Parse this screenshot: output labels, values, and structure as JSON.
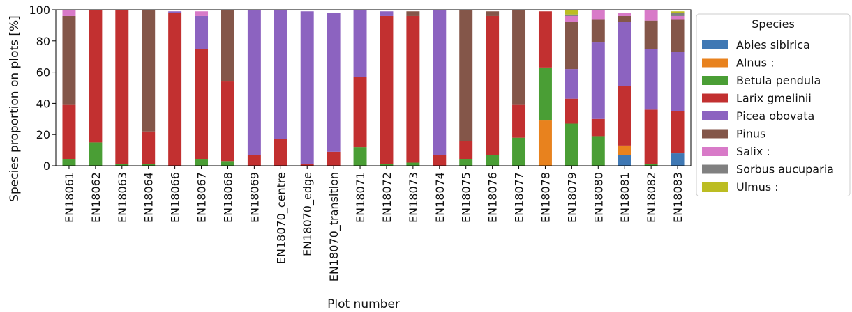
{
  "chart_data": {
    "type": "bar",
    "stacked": true,
    "xlabel": "Plot number",
    "ylabel": "Species proportion on plots [%]",
    "ylim": [
      0,
      100
    ],
    "yticks": [
      0,
      20,
      40,
      60,
      80,
      100
    ],
    "grid": false,
    "legend": {
      "title": "Species",
      "placement": "right, outside plot area"
    },
    "categories": [
      "EN18061",
      "EN18062",
      "EN18063",
      "EN18064",
      "EN18066",
      "EN18067",
      "EN18068",
      "EN18069",
      "EN18070_centre",
      "EN18070_edge",
      "EN18070_transition",
      "EN18071",
      "EN18072",
      "EN18073",
      "EN18074",
      "EN18075",
      "EN18076",
      "EN18077",
      "EN18078",
      "EN18079",
      "EN18080",
      "EN18081",
      "EN18082",
      "EN18083"
    ],
    "series": [
      {
        "name": "Abies sibirica",
        "color": "#3f78b4",
        "values": [
          0,
          0,
          0,
          0,
          0,
          0,
          0,
          0,
          0,
          0,
          0,
          0,
          0,
          0,
          0,
          0,
          0,
          0,
          0,
          0,
          0,
          7,
          0,
          8
        ]
      },
      {
        "name": "Alnus :",
        "color": "#e8821e",
        "values": [
          0,
          0,
          0,
          0,
          0,
          0,
          0,
          0,
          0,
          0,
          0,
          0,
          0,
          0,
          0,
          0,
          0,
          0,
          29,
          0,
          0,
          6,
          0,
          0
        ]
      },
      {
        "name": "Betula pendula",
        "color": "#4a9e35",
        "values": [
          4,
          15,
          1,
          1,
          0,
          4,
          3,
          0,
          0,
          0,
          0,
          12,
          1,
          2,
          0,
          4,
          7,
          18,
          34,
          27,
          19,
          0,
          1,
          0
        ]
      },
      {
        "name": "Larix gmelinii",
        "color": "#c23030",
        "values": [
          35,
          85,
          99,
          21,
          98,
          71,
          51,
          7,
          17,
          1,
          9,
          45,
          95,
          94,
          7,
          12,
          89,
          21,
          36,
          16,
          11,
          38,
          35,
          27
        ]
      },
      {
        "name": "Picea obovata",
        "color": "#8c63c0",
        "values": [
          0,
          0,
          0,
          0,
          1,
          21,
          0,
          93,
          83,
          98,
          89,
          43,
          3,
          0,
          93,
          0,
          0,
          0,
          0,
          19,
          49,
          41,
          39,
          38
        ]
      },
      {
        "name": "Pinus",
        "color": "#845649",
        "values": [
          57,
          0,
          0,
          78,
          0,
          0,
          46,
          0,
          0,
          0,
          0,
          0,
          0,
          3,
          0,
          84,
          3,
          61,
          0,
          30,
          15,
          4,
          18,
          21
        ]
      },
      {
        "name": "Salix :",
        "color": "#d87ac8",
        "values": [
          4,
          0,
          0,
          0,
          0,
          3,
          0,
          0,
          0,
          0,
          0,
          0,
          0,
          0,
          0,
          0,
          0,
          0,
          0,
          4,
          6,
          2,
          7,
          2
        ]
      },
      {
        "name": "Sorbus aucuparia",
        "color": "#808080",
        "values": [
          0,
          0,
          0,
          0,
          0,
          0,
          0,
          0,
          0,
          0,
          0,
          0,
          0,
          0,
          0,
          0,
          0,
          0,
          0,
          1,
          0,
          0,
          0,
          2
        ]
      },
      {
        "name": "Ulmus :",
        "color": "#bcbd22",
        "values": [
          0,
          0,
          0,
          0,
          0,
          0,
          0,
          0,
          0,
          0,
          0,
          0,
          0,
          0,
          0,
          0,
          0,
          0,
          0,
          3,
          0,
          0,
          0,
          1
        ]
      }
    ]
  }
}
